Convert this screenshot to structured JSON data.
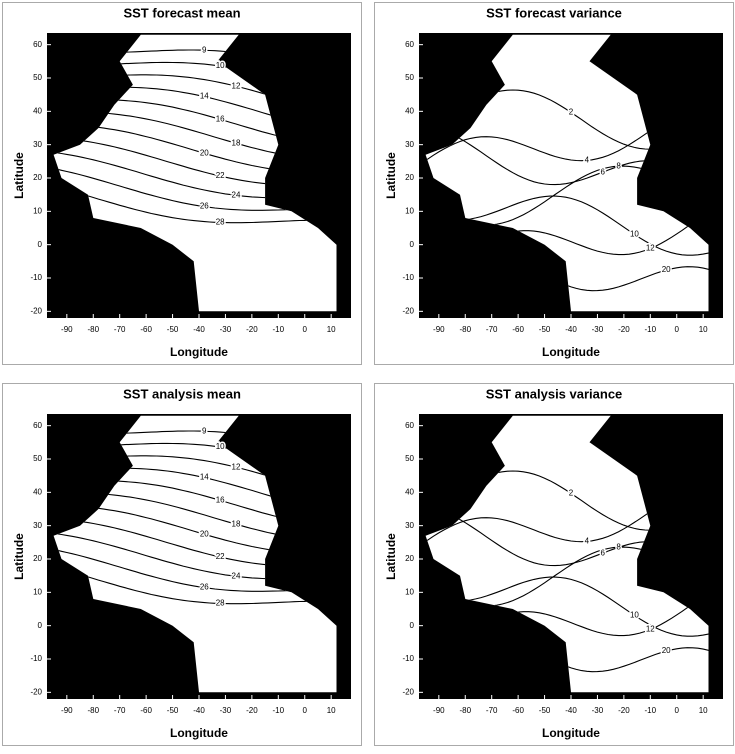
{
  "chart_data": [
    {
      "type": "contour",
      "title": "SST forecast mean",
      "xlabel": "Longitude",
      "ylabel": "Latitude",
      "xlim": [
        -97.5,
        17.5
      ],
      "ylim": [
        -22,
        63.5
      ],
      "xticks": [
        -90,
        -80,
        -70,
        -60,
        -50,
        -40,
        -30,
        -20,
        -10,
        0,
        10
      ],
      "yticks": [
        -20,
        -10,
        0,
        10,
        20,
        30,
        40,
        50,
        60
      ],
      "levels": [
        9,
        10,
        12,
        14,
        16,
        18,
        20,
        22,
        24,
        26,
        28
      ]
    },
    {
      "type": "contour-variance",
      "title": "SST forecast variance",
      "xlabel": "Longitude",
      "ylabel": "Latitude",
      "xlim": [
        -97.5,
        17.5
      ],
      "ylim": [
        -22,
        63.5
      ],
      "xticks": [
        -90,
        -80,
        -70,
        -60,
        -50,
        -40,
        -30,
        -20,
        -10,
        0,
        10
      ],
      "yticks": [
        -20,
        -10,
        0,
        10,
        20,
        30,
        40,
        50,
        60
      ],
      "levels": [
        2,
        4,
        6,
        8,
        10,
        12,
        20
      ]
    },
    {
      "type": "contour",
      "title": "SST analysis mean",
      "xlabel": "Longitude",
      "ylabel": "Latitude",
      "xlim": [
        -97.5,
        17.5
      ],
      "ylim": [
        -22,
        63.5
      ],
      "xticks": [
        -90,
        -80,
        -70,
        -60,
        -50,
        -40,
        -30,
        -20,
        -10,
        0,
        10
      ],
      "yticks": [
        -20,
        -10,
        0,
        10,
        20,
        30,
        40,
        50,
        60
      ],
      "levels": [
        9,
        10,
        12,
        14,
        16,
        18,
        20,
        22,
        24,
        26,
        28
      ]
    },
    {
      "type": "contour-variance",
      "title": "SST analysis variance",
      "xlabel": "Longitude",
      "ylabel": "Latitude",
      "xlim": [
        -97.5,
        17.5
      ],
      "ylim": [
        -22,
        63.5
      ],
      "xticks": [
        -90,
        -80,
        -70,
        -60,
        -50,
        -40,
        -30,
        -20,
        -10,
        0,
        10
      ],
      "yticks": [
        -20,
        -10,
        0,
        10,
        20,
        30,
        40,
        50,
        60
      ],
      "levels": [
        2,
        4,
        6,
        8,
        10,
        12,
        20
      ]
    }
  ]
}
